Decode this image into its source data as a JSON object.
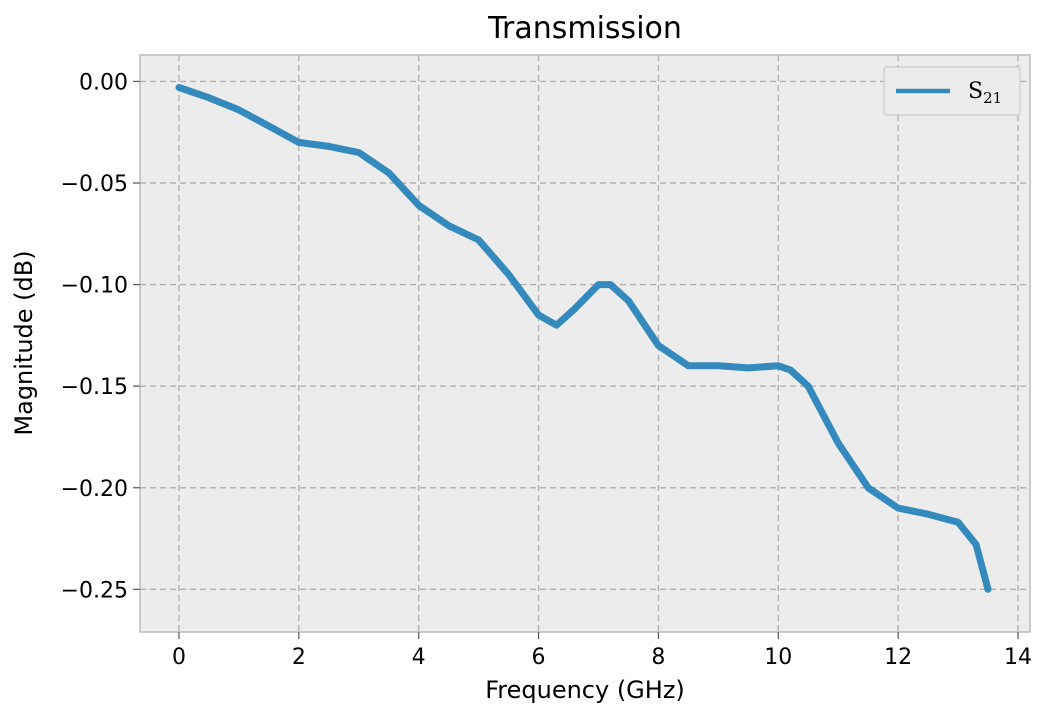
{
  "chart_data": {
    "type": "line",
    "title": "Transmission",
    "xlabel": "Frequency (GHz)",
    "ylabel": "Magnitude (dB)",
    "xlim": [
      -0.65,
      14.2
    ],
    "ylim": [
      -0.271,
      0.013
    ],
    "xticks": [
      0,
      2,
      4,
      6,
      8,
      10,
      12,
      14
    ],
    "xtick_labels": [
      "0",
      "2",
      "4",
      "6",
      "8",
      "10",
      "12",
      "14"
    ],
    "yticks": [
      0.0,
      -0.05,
      -0.1,
      -0.15,
      -0.2,
      -0.25
    ],
    "ytick_labels": [
      "0.00",
      "−0.05",
      "−0.10",
      "−0.15",
      "−0.20",
      "−0.25"
    ],
    "grid": true,
    "legend_position": "top-right",
    "background": "#ececec",
    "series": [
      {
        "name": "S21",
        "color": "#348abd",
        "x": [
          0,
          0.5,
          1,
          1.5,
          2,
          2.5,
          3,
          3.5,
          4,
          4.5,
          5,
          5.5,
          6,
          6.3,
          6.6,
          7,
          7.2,
          7.5,
          8,
          8.5,
          9,
          9.5,
          10,
          10.2,
          10.5,
          11,
          11.5,
          12,
          12.5,
          13,
          13.3,
          13.5
        ],
        "y": [
          -0.003,
          -0.008,
          -0.014,
          -0.022,
          -0.03,
          -0.032,
          -0.035,
          -0.045,
          -0.061,
          -0.071,
          -0.078,
          -0.095,
          -0.115,
          -0.12,
          -0.112,
          -0.1,
          -0.1,
          -0.108,
          -0.13,
          -0.14,
          -0.14,
          -0.141,
          -0.14,
          -0.142,
          -0.15,
          -0.178,
          -0.2,
          -0.21,
          -0.213,
          -0.217,
          -0.228,
          -0.25
        ]
      }
    ]
  }
}
